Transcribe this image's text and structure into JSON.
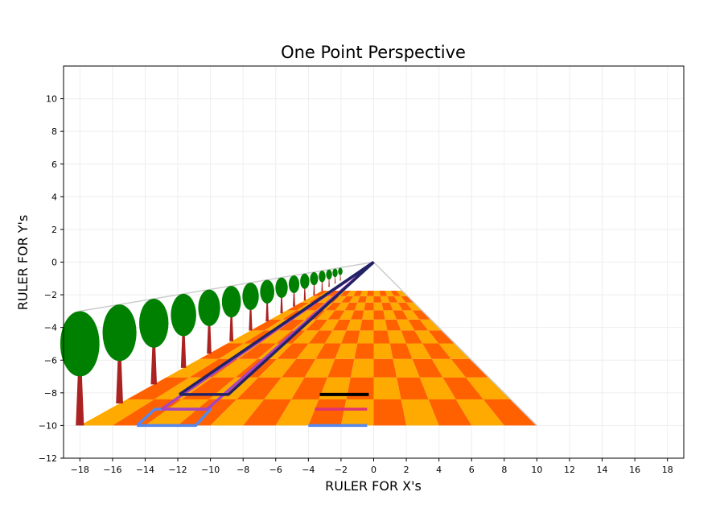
{
  "chart_data": {
    "type": "scatter",
    "title": "One Point Perspective",
    "xlabel": "RULER FOR X's",
    "ylabel": "RULER FOR Y's",
    "xlim": [
      -19,
      19
    ],
    "ylim": [
      -12,
      12
    ],
    "xticks": [
      -18,
      -16,
      -14,
      -12,
      -10,
      -8,
      -6,
      -4,
      -2,
      0,
      2,
      4,
      6,
      8,
      10,
      12,
      14,
      16,
      18
    ],
    "yticks": [
      -12,
      -10,
      -8,
      -6,
      -4,
      -2,
      0,
      2,
      4,
      6,
      8,
      10
    ],
    "grid": true,
    "vanishing_point": [
      0,
      0
    ],
    "floor": {
      "front_y": -10,
      "front_left_x": -18,
      "front_right_x": 10,
      "columns": 14,
      "rows": 10,
      "colors": [
        "#ffaa00",
        "#ff6000"
      ]
    },
    "trees": {
      "base_x": -18,
      "base_y": -10,
      "count": 16,
      "trunk_color": "#aa2222",
      "canopy_color": "#008000",
      "canopy_center_y": -5,
      "canopy_half_width": 1.2,
      "canopy_half_height": 2,
      "trunk_bottom_half_width": 0.25
    },
    "guide_lines": [
      {
        "name": "horizon guide",
        "color": "#cccccc",
        "points": [
          [
            -18,
            -3
          ],
          [
            0,
            0
          ]
        ]
      },
      {
        "name": "floor edge guide",
        "color": "#cccccc",
        "points": [
          [
            10,
            -10
          ],
          [
            0,
            0
          ]
        ]
      }
    ],
    "segments": [
      {
        "color": "#000000",
        "points": [
          [
            -3.3,
            -8.1
          ],
          [
            -0.3,
            -8.1
          ]
        ]
      },
      {
        "color": "#dd3377",
        "points": [
          [
            -3.6,
            -9.0
          ],
          [
            -0.4,
            -9.0
          ]
        ]
      },
      {
        "color": "#5588ee",
        "points": [
          [
            -4.0,
            -10.0
          ],
          [
            -0.4,
            -10.0
          ]
        ]
      },
      {
        "color": "#5588ee",
        "points": [
          [
            -14.5,
            -10.0
          ],
          [
            -10.9,
            -10.0
          ],
          [
            -10.0,
            -9.0
          ],
          [
            -13.4,
            -9.0
          ],
          [
            -14.5,
            -10.0
          ]
        ]
      },
      {
        "color": "#aa44bb",
        "points": [
          [
            -13.0,
            -9.0
          ],
          [
            -10.2,
            -9.0
          ],
          [
            0,
            0
          ]
        ]
      },
      {
        "color": "#aa44bb",
        "points": [
          [
            -13.0,
            -9.0
          ],
          [
            0,
            0
          ]
        ]
      },
      {
        "color": "#222266",
        "points": [
          [
            -11.9,
            -8.1
          ],
          [
            -8.9,
            -8.1
          ],
          [
            0,
            0
          ]
        ]
      },
      {
        "color": "#222266",
        "points": [
          [
            -11.9,
            -8.1
          ],
          [
            0,
            0
          ]
        ]
      }
    ]
  }
}
